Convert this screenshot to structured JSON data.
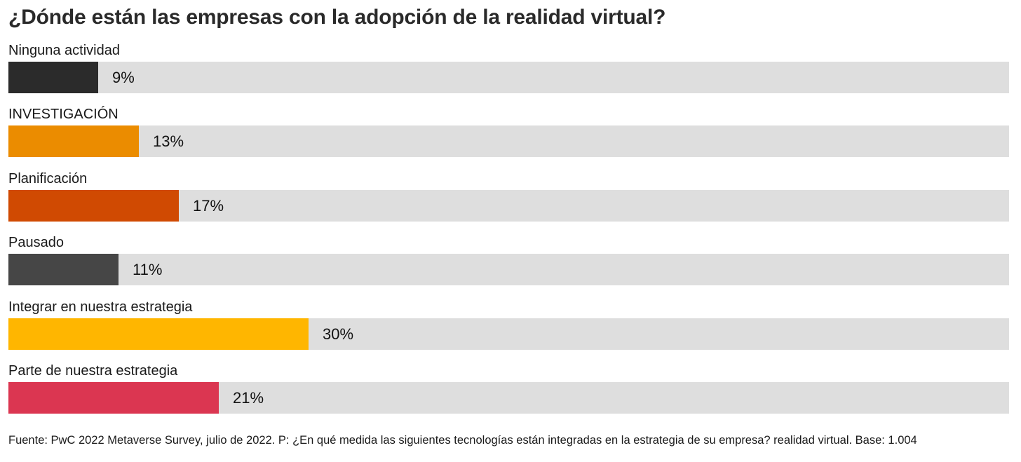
{
  "chart_data": {
    "type": "bar",
    "orientation": "horizontal",
    "title": "¿Dónde están las empresas con la adopción de la realidad virtual?",
    "categories": [
      "Ninguna actividad",
      "INVESTIGACIÓN",
      "Planificación",
      "Pausado",
      "Integrar en nuestra estrategia",
      "Parte de nuestra estrategia"
    ],
    "values": [
      9,
      13,
      17,
      11,
      30,
      21
    ],
    "value_labels": [
      "9%",
      "13%",
      "17%",
      "11%",
      "30%",
      "21%"
    ],
    "colors": [
      "#2b2b2b",
      "#eb8c00",
      "#d04a02",
      "#464646",
      "#ffb600",
      "#db3651"
    ],
    "track_color": "#dedede",
    "xlim": [
      0,
      100
    ],
    "xlabel": "",
    "ylabel": "",
    "unit": "%",
    "grid": false,
    "legend": "none"
  },
  "footer": {
    "source": "Fuente: PwC 2022 Metaverse Survey, julio de 2022. P: ¿En qué medida las siguientes tecnologías están integradas en la estrategia de su empresa? realidad virtual. Base: 1.004"
  }
}
